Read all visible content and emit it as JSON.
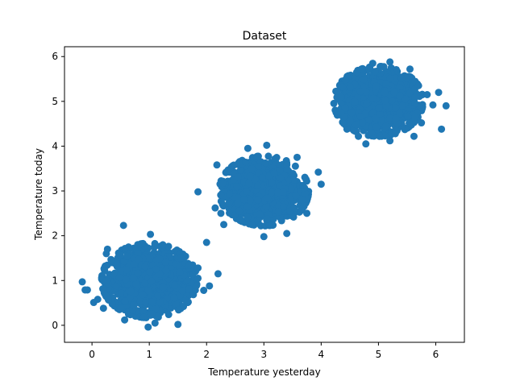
{
  "chart_data": {
    "type": "scatter",
    "title": "Dataset",
    "xlabel": "Temperature yesterday",
    "ylabel": "Temperature today",
    "xlim": [
      -0.48,
      6.5
    ],
    "ylim": [
      -0.38,
      6.22
    ],
    "xticks": [
      0,
      1,
      2,
      3,
      4,
      5,
      6
    ],
    "yticks": [
      0,
      1,
      2,
      3,
      4,
      5,
      6
    ],
    "grid": false,
    "marker_color": "#1f77b4",
    "clusters": [
      {
        "center": [
          1,
          1
        ],
        "spread": [
          0.32,
          0.32
        ],
        "count": 1500
      },
      {
        "center": [
          3,
          3
        ],
        "spread": [
          0.3,
          0.3
        ],
        "count": 1500
      },
      {
        "center": [
          5,
          5
        ],
        "spread": [
          0.3,
          0.3
        ],
        "count": 1500
      }
    ],
    "points": [
      {
        "x": -0.17,
        "y": 0.97
      },
      {
        "x": -0.12,
        "y": 0.79
      },
      {
        "x": -0.08,
        "y": 0.79
      },
      {
        "x": 0.03,
        "y": 0.51
      },
      {
        "x": 0.1,
        "y": 0.58
      },
      {
        "x": 0.2,
        "y": 0.38
      },
      {
        "x": 0.22,
        "y": 1.22
      },
      {
        "x": 0.25,
        "y": 1.6
      },
      {
        "x": 0.27,
        "y": 1.7
      },
      {
        "x": 0.55,
        "y": 2.23
      },
      {
        "x": 0.57,
        "y": 0.12
      },
      {
        "x": 0.9,
        "y": 0.18
      },
      {
        "x": 0.98,
        "y": -0.04
      },
      {
        "x": 1.02,
        "y": 2.03
      },
      {
        "x": 1.1,
        "y": 0.05
      },
      {
        "x": 1.5,
        "y": 0.02
      },
      {
        "x": 1.55,
        "y": 1.5
      },
      {
        "x": 1.7,
        "y": 1.35
      },
      {
        "x": 1.85,
        "y": 1.28
      },
      {
        "x": 1.85,
        "y": 1.05
      },
      {
        "x": 1.95,
        "y": 0.78
      },
      {
        "x": 2.0,
        "y": 1.85
      },
      {
        "x": 2.05,
        "y": 0.88
      },
      {
        "x": 2.2,
        "y": 1.15
      },
      {
        "x": 1.85,
        "y": 2.98
      },
      {
        "x": 2.18,
        "y": 3.58
      },
      {
        "x": 2.15,
        "y": 2.62
      },
      {
        "x": 2.25,
        "y": 2.5
      },
      {
        "x": 2.3,
        "y": 2.25
      },
      {
        "x": 2.72,
        "y": 3.95
      },
      {
        "x": 3.05,
        "y": 4.02
      },
      {
        "x": 3.0,
        "y": 1.98
      },
      {
        "x": 3.4,
        "y": 2.05
      },
      {
        "x": 3.58,
        "y": 3.75
      },
      {
        "x": 3.75,
        "y": 2.5
      },
      {
        "x": 3.95,
        "y": 3.42
      },
      {
        "x": 4.0,
        "y": 3.15
      },
      {
        "x": 4.35,
        "y": 5.1
      },
      {
        "x": 4.37,
        "y": 5.32
      },
      {
        "x": 4.4,
        "y": 4.65
      },
      {
        "x": 4.42,
        "y": 4.85
      },
      {
        "x": 4.45,
        "y": 4.38
      },
      {
        "x": 4.42,
        "y": 5.48
      },
      {
        "x": 4.62,
        "y": 5.65
      },
      {
        "x": 4.9,
        "y": 5.85
      },
      {
        "x": 5.2,
        "y": 5.88
      },
      {
        "x": 4.65,
        "y": 4.22
      },
      {
        "x": 4.78,
        "y": 4.05
      },
      {
        "x": 5.55,
        "y": 5.72
      },
      {
        "x": 5.7,
        "y": 5.35
      },
      {
        "x": 5.85,
        "y": 5.15
      },
      {
        "x": 5.95,
        "y": 4.92
      },
      {
        "x": 6.05,
        "y": 5.2
      },
      {
        "x": 6.1,
        "y": 4.38
      },
      {
        "x": 6.18,
        "y": 4.9
      },
      {
        "x": 5.75,
        "y": 4.52
      },
      {
        "x": 5.62,
        "y": 4.22
      },
      {
        "x": 5.2,
        "y": 4.12
      }
    ]
  }
}
